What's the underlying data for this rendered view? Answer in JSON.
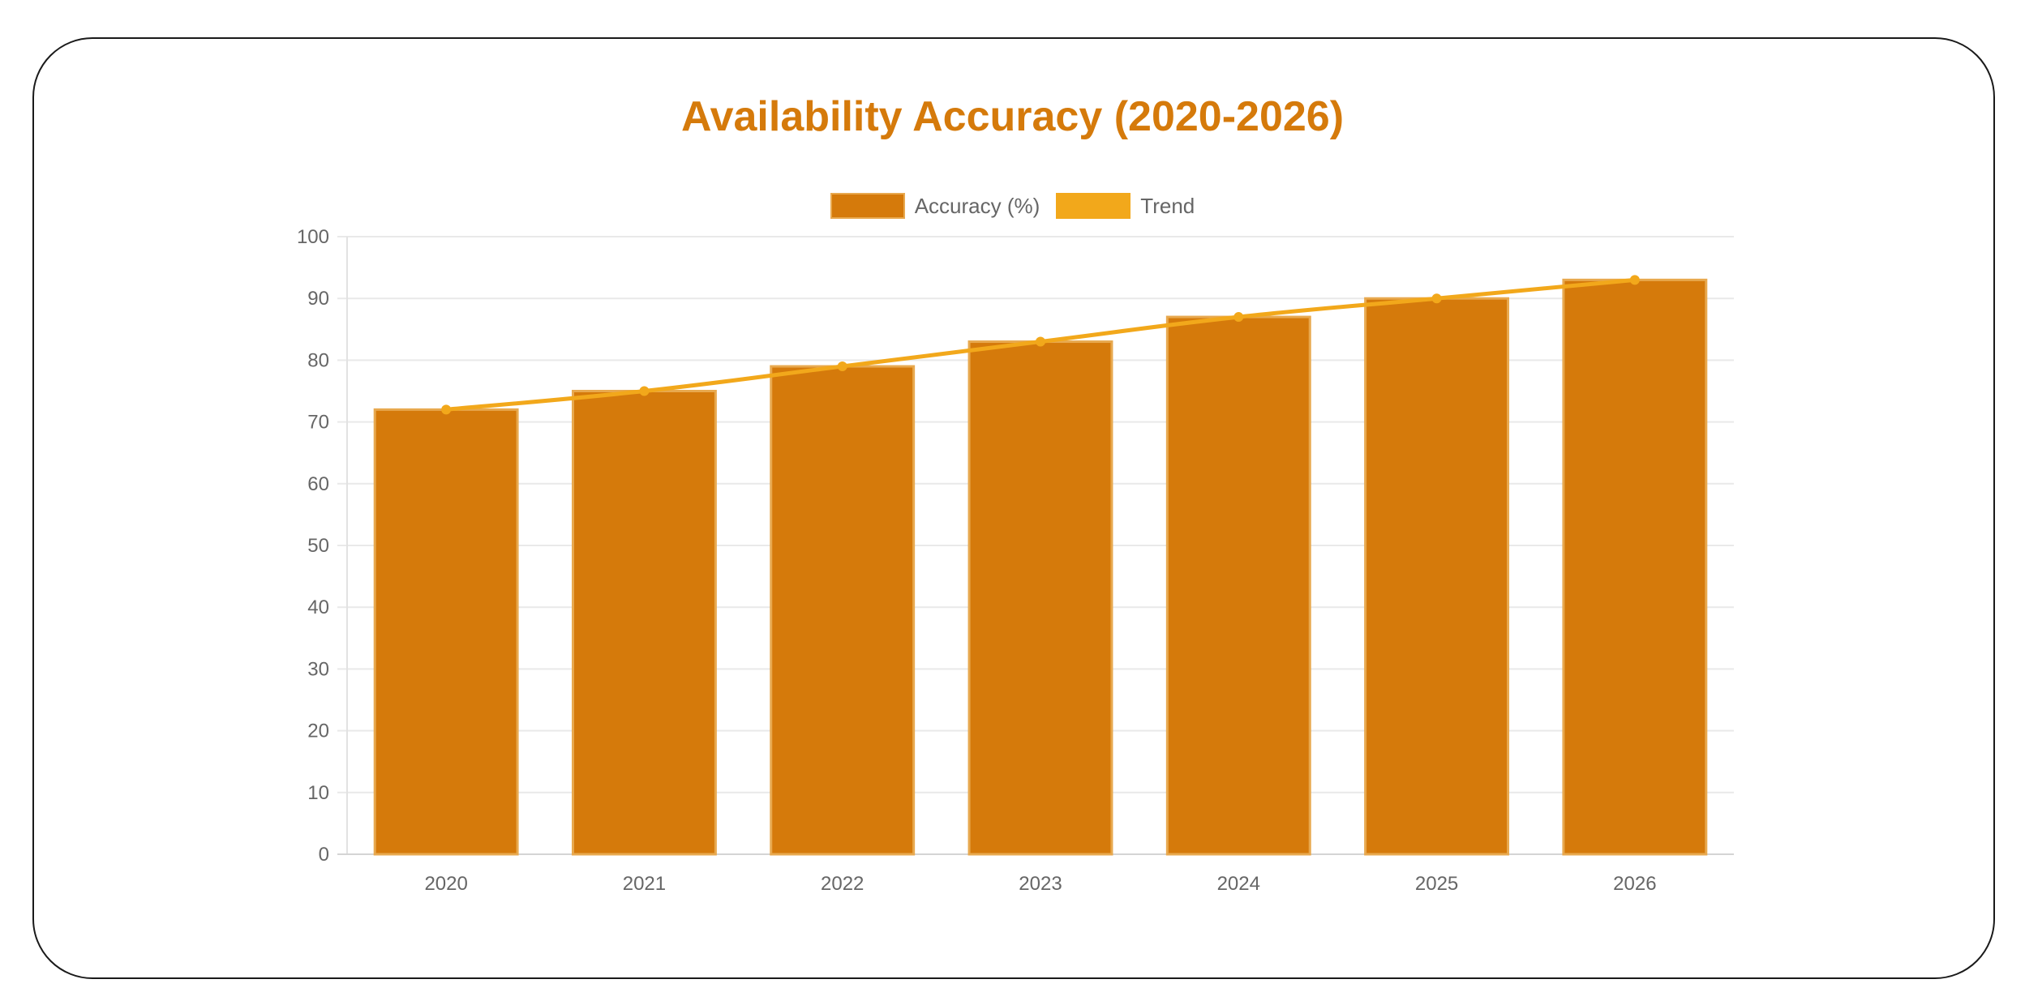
{
  "chart_data": {
    "type": "bar",
    "title": "Availability Accuracy (2020-2026)",
    "xlabel": "",
    "ylabel": "",
    "categories": [
      "2020",
      "2021",
      "2022",
      "2023",
      "2024",
      "2025",
      "2026"
    ],
    "series": [
      {
        "name": "Accuracy (%)",
        "type": "bar",
        "values": [
          72,
          75,
          79,
          83,
          87,
          90,
          93
        ]
      },
      {
        "name": "Trend",
        "type": "line",
        "values": [
          72,
          75,
          79,
          83,
          87,
          90,
          93
        ]
      }
    ],
    "ylim": [
      0,
      100
    ],
    "yticks": [
      "0",
      "10",
      "20",
      "30",
      "40",
      "50",
      "60",
      "70",
      "80",
      "90",
      "100"
    ],
    "grid": true,
    "legend_position": "top-center"
  },
  "colors": {
    "title": "#d57a0b",
    "bar_fill": "#d57a0b",
    "bar_border": "#e8a94f",
    "trend_line": "#f2a81b",
    "grid": "#e9e9e9",
    "axis_text": "#666666"
  }
}
